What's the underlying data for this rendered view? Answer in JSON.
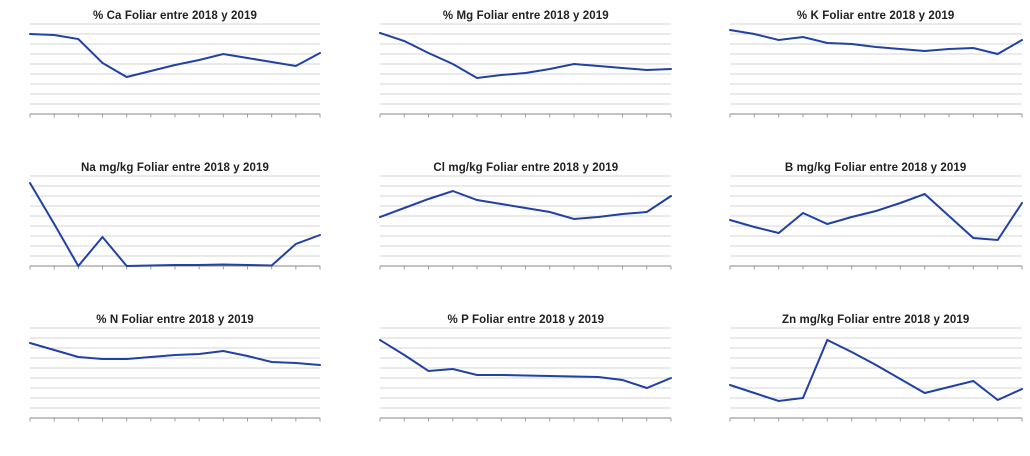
{
  "page": {
    "background_color": "#ffffff",
    "description_labels": {
      "layout": "3x3 grid of small line charts"
    }
  },
  "styles": {
    "line_color": "#2041a5",
    "gridline_color": "#d4d4d4",
    "axis_color": "#9e9e9e",
    "title_color": "#212121"
  },
  "chart_data": [
    {
      "type": "line",
      "title": "% Ca Foliar entre 2018 y 2019",
      "values": [
        8.0,
        7.9,
        7.5,
        5.1,
        3.7,
        4.3,
        4.9,
        5.4,
        6.0,
        5.6,
        5.2,
        4.8,
        6.1
      ],
      "ylim": [
        0,
        9
      ],
      "y_gridlines": 9,
      "x_tick_count": 13,
      "x_labels": [],
      "y_labels": [],
      "legend": "none",
      "grid": "horizontal"
    },
    {
      "type": "line",
      "title": "% Mg Foliar entre 2018 y 2019",
      "values": [
        8.1,
        7.3,
        6.1,
        5.0,
        3.6,
        3.9,
        4.1,
        4.5,
        5.0,
        4.8,
        4.6,
        4.4,
        4.5
      ],
      "ylim": [
        0,
        9
      ],
      "y_gridlines": 9,
      "x_tick_count": 13,
      "x_labels": [],
      "y_labels": [],
      "legend": "none",
      "grid": "horizontal"
    },
    {
      "type": "line",
      "title": "% K Foliar entre 2018 y 2019",
      "values": [
        8.4,
        8.0,
        7.4,
        7.7,
        7.1,
        7.0,
        6.7,
        6.5,
        6.3,
        6.5,
        6.6,
        6.0,
        7.4
      ],
      "ylim": [
        0,
        9
      ],
      "y_gridlines": 9,
      "x_tick_count": 13,
      "x_labels": [],
      "y_labels": [],
      "legend": "none",
      "grid": "horizontal"
    },
    {
      "type": "line",
      "title": "Na mg/kg Foliar entre 2018 y 2019",
      "values": [
        8.3,
        4.2,
        0.0,
        2.9,
        0.0,
        0.05,
        0.1,
        0.1,
        0.15,
        0.1,
        0.05,
        2.2,
        3.1
      ],
      "ylim": [
        0,
        9
      ],
      "y_gridlines": 9,
      "x_tick_count": 13,
      "x_labels": [],
      "y_labels": [],
      "legend": "none",
      "grid": "horizontal"
    },
    {
      "type": "line",
      "title": "Cl mg/kg Foliar entre 2018 y 2019",
      "values": [
        4.9,
        5.8,
        6.7,
        7.5,
        6.6,
        6.2,
        5.8,
        5.4,
        4.7,
        4.9,
        5.2,
        5.4,
        7.0
      ],
      "ylim": [
        0,
        9
      ],
      "y_gridlines": 9,
      "x_tick_count": 13,
      "x_labels": [],
      "y_labels": [],
      "legend": "none",
      "grid": "horizontal"
    },
    {
      "type": "line",
      "title": "B mg/kg Foliar entre 2018 y 2019",
      "values": [
        4.6,
        3.9,
        3.3,
        5.3,
        4.2,
        4.9,
        5.5,
        6.3,
        7.2,
        5.0,
        2.8,
        2.6,
        6.3
      ],
      "ylim": [
        0,
        9
      ],
      "y_gridlines": 9,
      "x_tick_count": 13,
      "x_labels": [],
      "y_labels": [],
      "legend": "none",
      "grid": "horizontal"
    },
    {
      "type": "line",
      "title": "% N Foliar entre 2018 y 2019",
      "values": [
        7.5,
        6.8,
        6.1,
        5.9,
        5.9,
        6.1,
        6.3,
        6.4,
        6.7,
        6.2,
        5.6,
        5.5,
        5.3
      ],
      "ylim": [
        0,
        9
      ],
      "y_gridlines": 9,
      "x_tick_count": 13,
      "x_labels": [],
      "y_labels": [],
      "legend": "none",
      "grid": "horizontal"
    },
    {
      "type": "line",
      "title": "% P Foliar entre 2018 y 2019",
      "values": [
        7.8,
        6.3,
        4.7,
        4.9,
        4.3,
        4.3,
        4.25,
        4.2,
        4.15,
        4.1,
        3.8,
        3.0,
        4.0
      ],
      "ylim": [
        0,
        9
      ],
      "y_gridlines": 9,
      "x_tick_count": 13,
      "x_labels": [],
      "y_labels": [],
      "legend": "none",
      "grid": "horizontal"
    },
    {
      "type": "line",
      "title": "Zn mg/kg Foliar entre 2018 y 2019",
      "values": [
        3.3,
        2.5,
        1.7,
        2.0,
        7.8,
        6.6,
        5.3,
        3.9,
        2.5,
        3.1,
        3.7,
        1.8,
        2.9
      ],
      "ylim": [
        0,
        9
      ],
      "y_gridlines": 9,
      "x_tick_count": 13,
      "x_labels": [],
      "y_labels": [],
      "legend": "none",
      "grid": "horizontal"
    }
  ]
}
